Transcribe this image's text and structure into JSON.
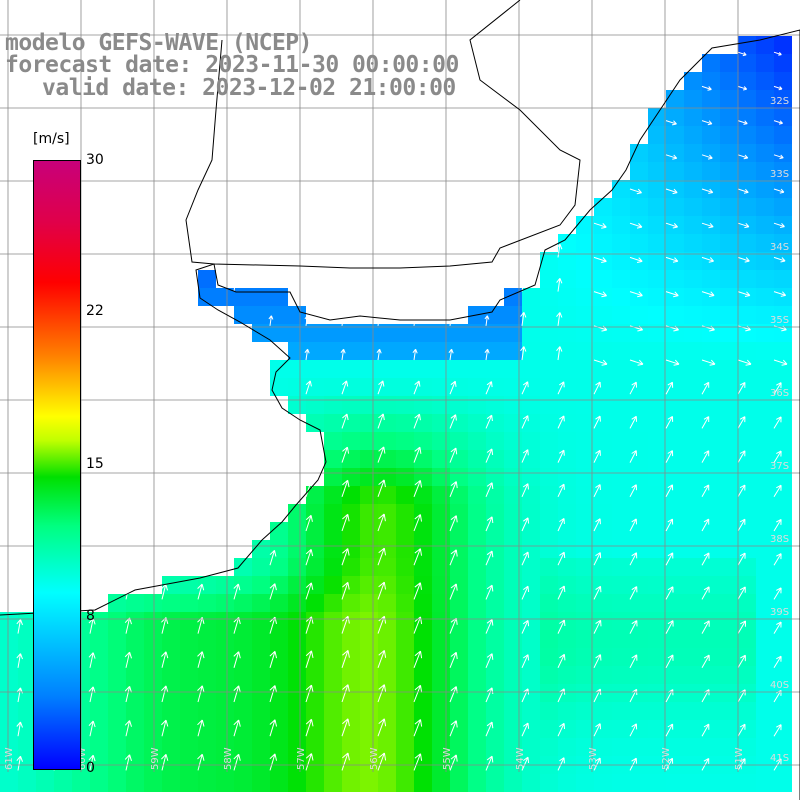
{
  "header": {
    "line1": "modelo GEFS-WAVE (NCEP)",
    "line2": "forecast date: 2023-11-30 00:00:00",
    "line3": "valid date: 2023-12-02 21:00:00"
  },
  "colorbar": {
    "unit": "[m/s]",
    "ticks": [
      {
        "label": "30",
        "value": 30
      },
      {
        "label": "22",
        "value": 22
      },
      {
        "label": "15",
        "value": 15
      },
      {
        "label": "8",
        "value": 8
      },
      {
        "label": "0",
        "value": 0
      }
    ],
    "colors": [
      "#0000ff",
      "#0080ff",
      "#00ffff",
      "#00ff80",
      "#00e000",
      "#c0ff00",
      "#ffff00",
      "#ff8000",
      "#ff0000",
      "#c8007a"
    ]
  },
  "map": {
    "variable": "wind speed and direction",
    "lat_labels": [
      "32S",
      "33S",
      "34S",
      "35S",
      "36S",
      "37S",
      "38S",
      "39S",
      "40S",
      "41S"
    ],
    "lon_labels": [
      "61W",
      "60W",
      "59W",
      "58W",
      "57W",
      "56W",
      "55W",
      "54W",
      "53W",
      "52W",
      "51W"
    ],
    "grid_color": "#888888",
    "coast_color": "#000000"
  }
}
